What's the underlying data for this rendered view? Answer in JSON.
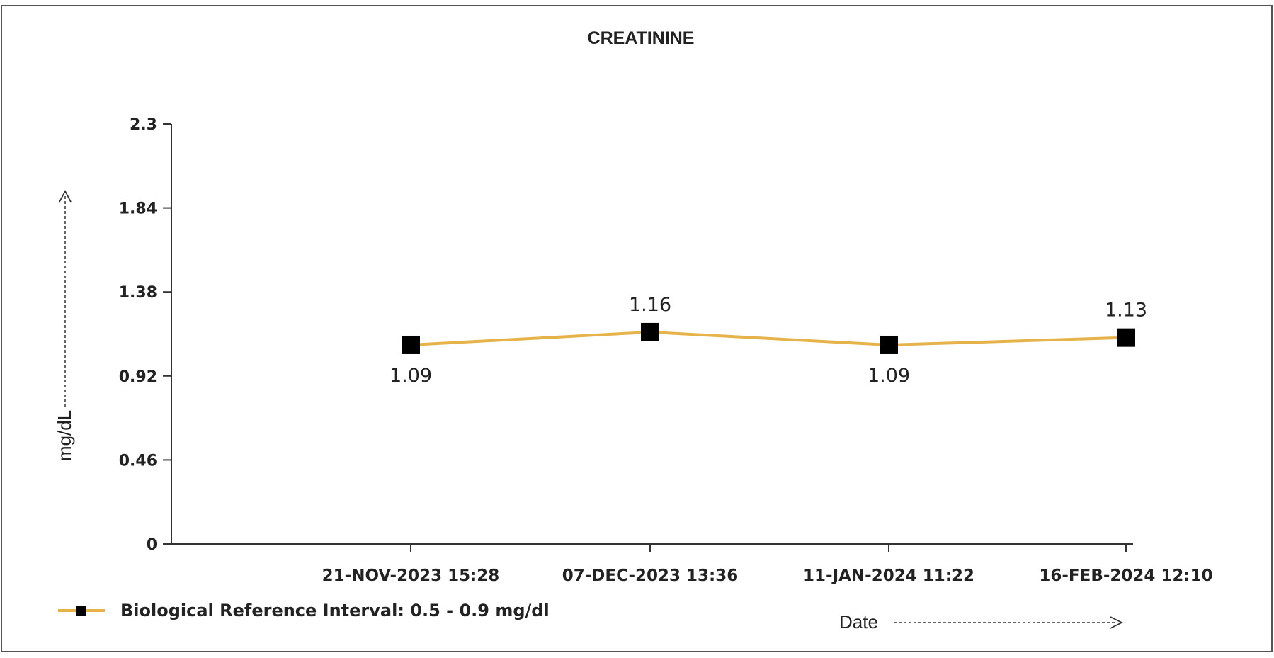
{
  "chart_data": {
    "type": "line",
    "title": "CREATININE",
    "ylabel": "mg/dL",
    "xlabel": "Date",
    "ylim": [
      0,
      2.3
    ],
    "yticks": [
      "0",
      "0.46",
      "0.92",
      "1.38",
      "1.84",
      "2.3"
    ],
    "categories": [
      "21-NOV-2023 15:28",
      "07-DEC-2023 13:36",
      "11-JAN-2024 11:22",
      "16-FEB-2024 12:10"
    ],
    "series": [
      {
        "name": "Biological Reference Interval: 0.5 - 0.9 mg/dl",
        "values": [
          1.09,
          1.16,
          1.09,
          1.13
        ],
        "data_labels": [
          "1.09",
          "1.16",
          "1.09",
          "1.13"
        ],
        "label_position": [
          "below",
          "above",
          "below",
          "above"
        ]
      }
    ],
    "grid": false,
    "legend_position": "bottom-left",
    "colors": {
      "line": "#e6b34a",
      "marker": "#000000",
      "axis": "#333333",
      "border": "#555555"
    }
  }
}
